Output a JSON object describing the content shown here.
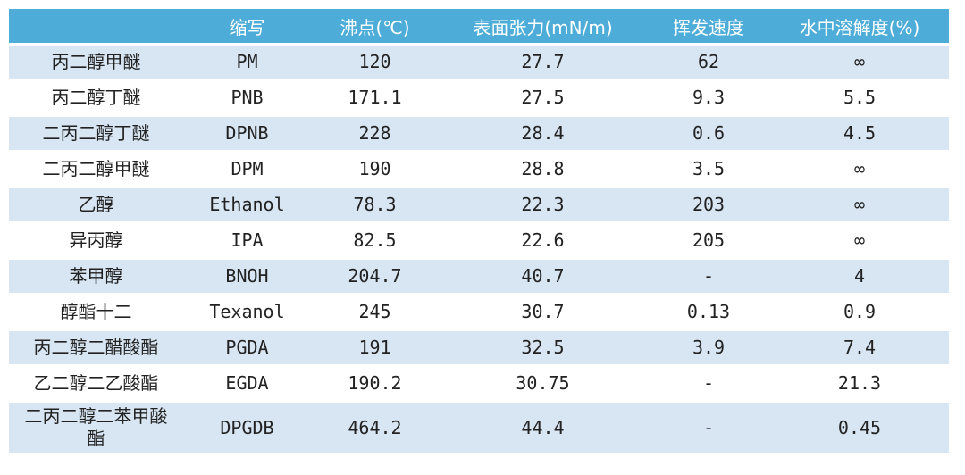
{
  "table": {
    "headers": [
      "",
      "缩写",
      "沸点(℃)",
      "表面张力(mN/m)",
      "挥发速度",
      "水中溶解度(%)"
    ],
    "rows": [
      [
        "丙二醇甲醚",
        "PM",
        "120",
        "27.7",
        "62",
        "∞"
      ],
      [
        "丙二醇丁醚",
        "PNB",
        "171.1",
        "27.5",
        "9.3",
        "5.5"
      ],
      [
        "二丙二醇丁醚",
        "DPNB",
        "228",
        "28.4",
        "0.6",
        "4.5"
      ],
      [
        "二丙二醇甲醚",
        "DPM",
        "190",
        "28.8",
        "3.5",
        "∞"
      ],
      [
        "乙醇",
        "Ethanol",
        "78.3",
        "22.3",
        "203",
        "∞"
      ],
      [
        "异丙醇",
        "IPA",
        "82.5",
        "22.6",
        "205",
        "∞"
      ],
      [
        "苯甲醇",
        "BNOH",
        "204.7",
        "40.7",
        "-",
        "4"
      ],
      [
        "醇酯十二",
        "Texanol",
        "245",
        "30.7",
        "0.13",
        "0.9"
      ],
      [
        "丙二醇二醋酸酯",
        "PGDA",
        "191",
        "32.5",
        "3.9",
        "7.4"
      ],
      [
        "乙二醇二乙酸酯",
        "EGDA",
        "190.2",
        "30.75",
        "-",
        "21.3"
      ],
      [
        "二丙二醇二苯甲酸酯",
        "DPGDB",
        "464.2",
        "44.4",
        "-",
        "0.45"
      ]
    ]
  },
  "colors": {
    "header_bg": "#4eadd8",
    "stripe_bg": "#d8e6f3"
  }
}
